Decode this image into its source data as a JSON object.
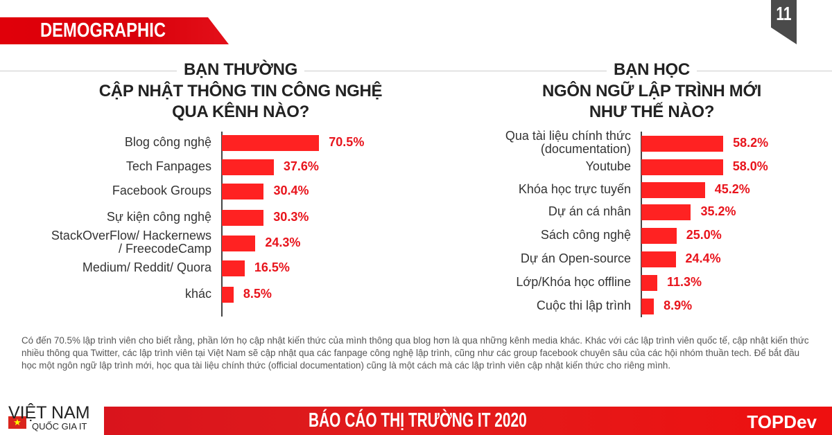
{
  "header": {
    "section": "DEMOGRAPHIC",
    "page_number": "11"
  },
  "chart_data": [
    {
      "type": "bar",
      "orientation": "horizontal",
      "title_lines": [
        "BẠN THƯỜNG",
        "CẬP NHẬT THÔNG TIN CÔNG NGHỆ",
        "QUA KÊNH NÀO?"
      ],
      "categories": [
        "Blog công nghệ",
        "Tech Fanpages",
        "Facebook Groups",
        "Sự kiện công nghệ",
        "StackOverFlow/ Hackernews / FreecodeCamp",
        "Medium/ Reddit/ Quora",
        "khác"
      ],
      "category_lines": [
        [
          "Blog công nghệ"
        ],
        [
          "Tech Fanpages"
        ],
        [
          "Facebook Groups"
        ],
        [
          "Sự kiện công nghệ"
        ],
        [
          "StackOverFlow/ Hackernews",
          "/ FreecodeCamp"
        ],
        [
          "Medium/ Reddit/ Quora"
        ],
        [
          "khác"
        ]
      ],
      "values": [
        70.5,
        37.6,
        30.4,
        30.3,
        24.3,
        16.5,
        8.5
      ],
      "labels": [
        "70.5%",
        "37.6%",
        "30.4%",
        "30.3%",
        "24.3%",
        "16.5%",
        "8.5%"
      ],
      "unit": "%",
      "color": "#ff2222"
    },
    {
      "type": "bar",
      "orientation": "horizontal",
      "title_lines": [
        "BẠN HỌC",
        "NGÔN NGỮ LẬP TRÌNH MỚI",
        "NHƯ THẾ NÀO?"
      ],
      "categories": [
        "Qua tài liệu chính thức (documentation)",
        "Youtube",
        "Khóa học trực tuyến",
        "Dự án cá nhân",
        "Sách công nghệ",
        "Dự án Open-source",
        "Lớp/Khóa học offline",
        "Cuộc thi lập trình"
      ],
      "category_lines": [
        [
          "Qua tài liệu chính thức",
          "(documentation)"
        ],
        [
          "Youtube"
        ],
        [
          "Khóa học trực tuyến"
        ],
        [
          "Dự án cá nhân"
        ],
        [
          "Sách công nghệ"
        ],
        [
          "Dự án Open-source"
        ],
        [
          "Lớp/Khóa học offline"
        ],
        [
          "Cuộc thi lập trình"
        ]
      ],
      "values": [
        58.2,
        58.0,
        45.2,
        35.2,
        25.0,
        24.4,
        11.3,
        8.9
      ],
      "labels": [
        "58.2%",
        "58.0%",
        "45.2%",
        "35.2%",
        "25.0%",
        "24.4%",
        "11.3%",
        "8.9%"
      ],
      "unit": "%",
      "color": "#ff2222"
    }
  ],
  "note": "Có đến 70.5% lập trình viên cho biết rằng, phần lớn họ cập nhật kiến thức của mình thông qua blog hơn là qua những kênh media khác. Khác với các lập trình viên quốc tế, cập nhật kiến thức nhiều thông qua Twitter, các lập trình viên tại Việt Nam sẽ cập nhật qua các fanpage công nghệ lập trình, cũng như các group facebook chuyên sâu của các hội nhóm thuần tech. Để bắt đầu học một ngôn ngữ lập trình mới,  học qua tài liệu chính thức (official documentation) cũng là một cách mà các lập trình viên cập nhật kiến thức cho riêng mình.",
  "footer": {
    "logo_line1": "VIỆT NAM",
    "logo_line2": "QUỐC GIA IT",
    "title": "BÁO CÁO THỊ TRƯỜNG IT 2020",
    "brand": "TOPDev"
  }
}
